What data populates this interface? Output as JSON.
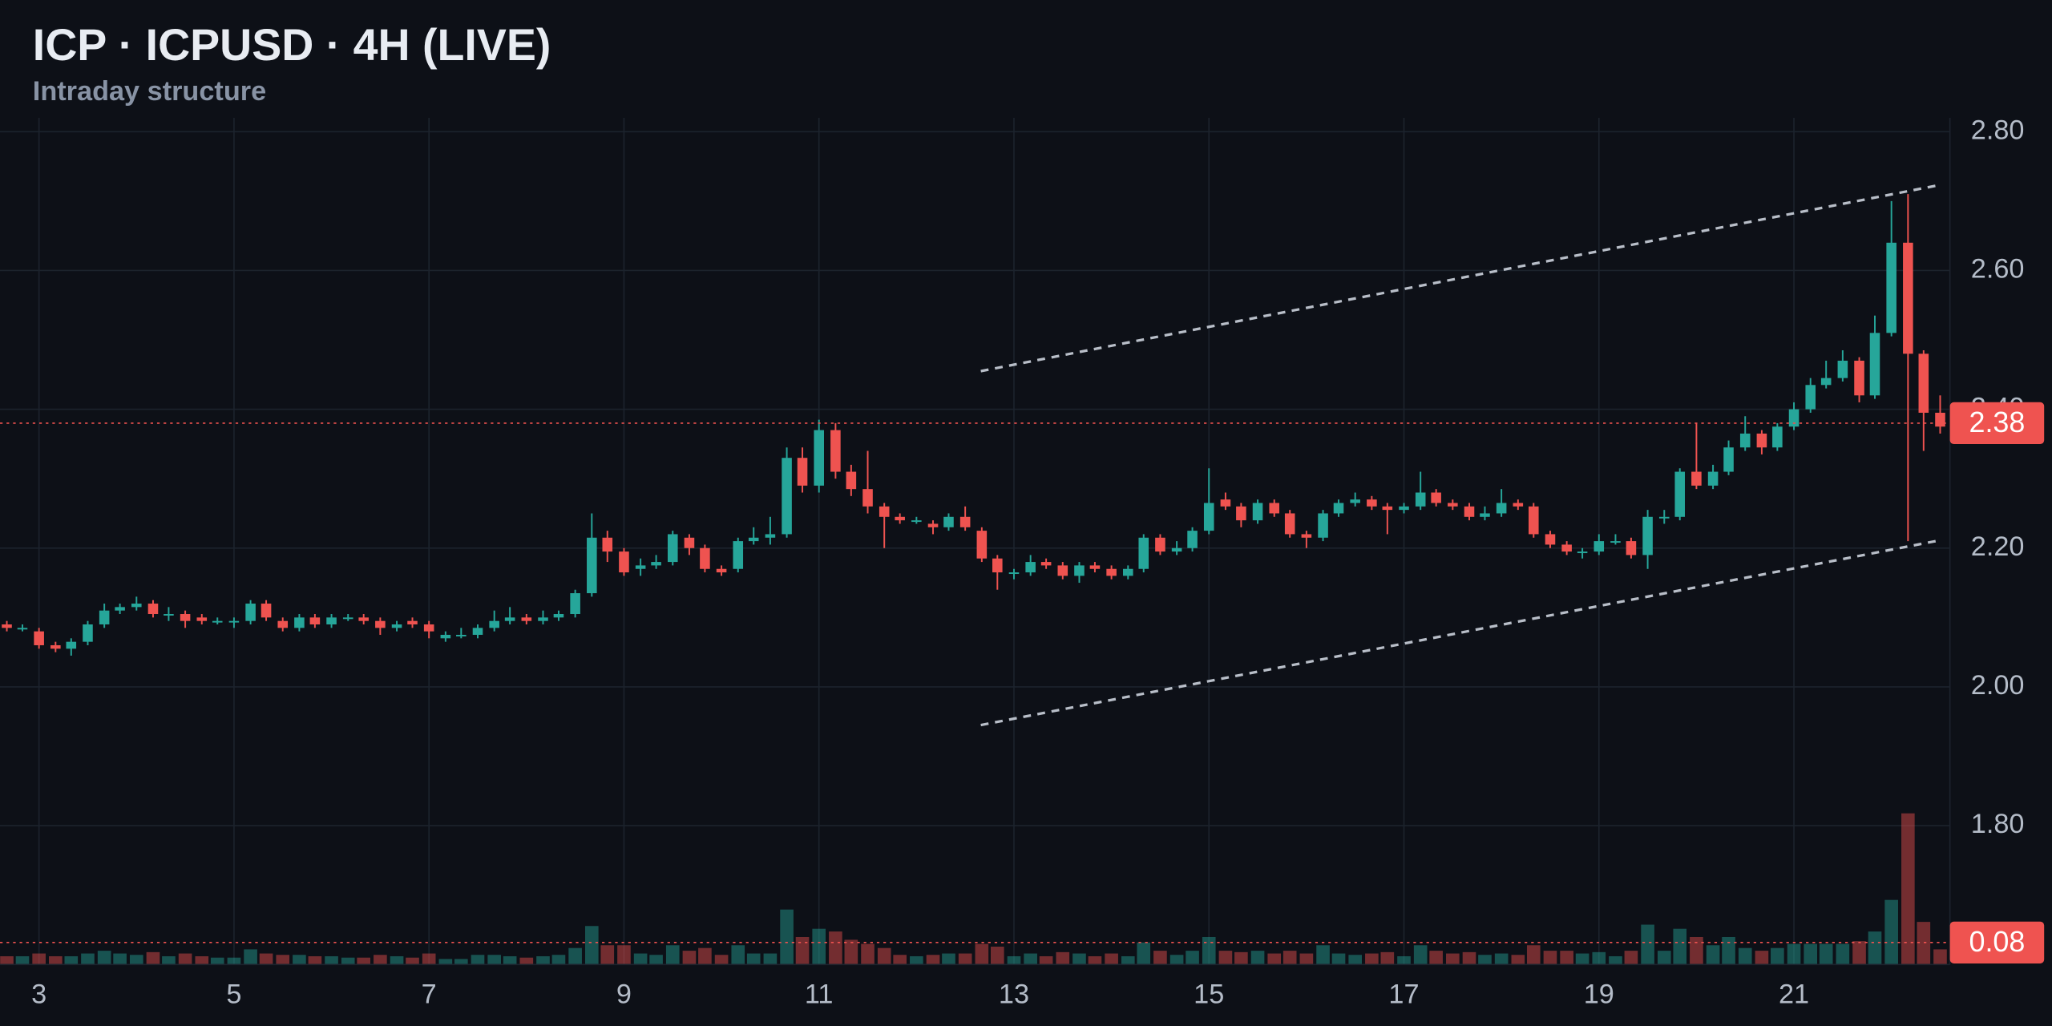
{
  "chart_data": {
    "type": "candlestick",
    "title": "ICP · ICPUSD · 4H (LIVE)",
    "subtitle": "Intraday structure",
    "up_color": "#26a69a",
    "down_color": "#ef5350",
    "x": [
      2.67,
      2.83,
      3,
      3.17,
      3.33,
      3.5,
      3.67,
      3.83,
      4,
      4.17,
      4.33,
      4.5,
      4.67,
      4.83,
      5,
      5.17,
      5.33,
      5.5,
      5.67,
      5.83,
      6,
      6.17,
      6.33,
      6.5,
      6.67,
      6.83,
      7,
      7.17,
      7.33,
      7.5,
      7.67,
      7.83,
      8,
      8.17,
      8.33,
      8.5,
      8.67,
      8.83,
      9,
      9.17,
      9.33,
      9.5,
      9.67,
      9.83,
      10,
      10.17,
      10.33,
      10.5,
      10.67,
      10.83,
      11,
      11.17,
      11.33,
      11.5,
      11.67,
      11.83,
      12,
      12.17,
      12.33,
      12.5,
      12.67,
      12.83,
      13,
      13.17,
      13.33,
      13.5,
      13.67,
      13.83,
      14,
      14.17,
      14.33,
      14.5,
      14.67,
      14.83,
      15,
      15.17,
      15.33,
      15.5,
      15.67,
      15.83,
      16,
      16.17,
      16.33,
      16.5,
      16.67,
      16.83,
      17,
      17.17,
      17.33,
      17.5,
      17.67,
      17.83,
      18,
      18.17,
      18.33,
      18.5,
      18.67,
      18.83,
      19,
      19.17,
      19.33,
      19.5,
      19.67,
      19.83,
      20,
      20.17,
      20.33,
      20.5,
      20.67,
      20.83,
      21,
      21.17,
      21.33,
      21.5,
      21.67,
      21.83,
      22,
      22.17,
      22.33,
      22.5
    ],
    "open": [
      2.09,
      2.085,
      2.08,
      2.06,
      2.055,
      2.065,
      2.09,
      2.11,
      2.115,
      2.12,
      2.105,
      2.105,
      2.1,
      2.095,
      2.095,
      2.095,
      2.12,
      2.095,
      2.085,
      2.1,
      2.09,
      2.1,
      2.1,
      2.095,
      2.085,
      2.095,
      2.09,
      2.07,
      2.075,
      2.075,
      2.085,
      2.095,
      2.1,
      2.095,
      2.1,
      2.105,
      2.135,
      2.215,
      2.195,
      2.17,
      2.175,
      2.18,
      2.215,
      2.2,
      2.17,
      2.17,
      2.21,
      2.215,
      2.22,
      2.33,
      2.29,
      2.37,
      2.31,
      2.285,
      2.26,
      2.245,
      2.24,
      2.235,
      2.23,
      2.245,
      2.225,
      2.185,
      2.165,
      2.165,
      2.18,
      2.175,
      2.16,
      2.175,
      2.17,
      2.16,
      2.17,
      2.215,
      2.195,
      2.2,
      2.225,
      2.27,
      2.26,
      2.24,
      2.265,
      2.25,
      2.22,
      2.215,
      2.25,
      2.265,
      2.27,
      2.26,
      2.255,
      2.26,
      2.28,
      2.265,
      2.26,
      2.245,
      2.25,
      2.265,
      2.26,
      2.22,
      2.205,
      2.195,
      2.195,
      2.21,
      2.21,
      2.19,
      2.245,
      2.245,
      2.31,
      2.29,
      2.31,
      2.345,
      2.365,
      2.345,
      2.375,
      2.4,
      2.435,
      2.445,
      2.47,
      2.42,
      2.51,
      2.64,
      2.48,
      2.395
    ],
    "high": [
      2.095,
      2.09,
      2.085,
      2.065,
      2.07,
      2.095,
      2.12,
      2.12,
      2.13,
      2.125,
      2.115,
      2.11,
      2.105,
      2.1,
      2.1,
      2.125,
      2.125,
      2.1,
      2.105,
      2.105,
      2.105,
      2.105,
      2.105,
      2.1,
      2.095,
      2.1,
      2.095,
      2.08,
      2.085,
      2.09,
      2.11,
      2.115,
      2.105,
      2.11,
      2.11,
      2.14,
      2.25,
      2.225,
      2.2,
      2.185,
      2.19,
      2.225,
      2.22,
      2.205,
      2.175,
      2.215,
      2.23,
      2.245,
      2.345,
      2.345,
      2.385,
      2.38,
      2.32,
      2.34,
      2.265,
      2.25,
      2.245,
      2.24,
      2.25,
      2.26,
      2.23,
      2.19,
      2.17,
      2.19,
      2.185,
      2.18,
      2.18,
      2.18,
      2.175,
      2.175,
      2.22,
      2.22,
      2.21,
      2.23,
      2.315,
      2.28,
      2.265,
      2.27,
      2.27,
      2.255,
      2.225,
      2.255,
      2.27,
      2.28,
      2.275,
      2.265,
      2.265,
      2.31,
      2.285,
      2.27,
      2.265,
      2.26,
      2.285,
      2.27,
      2.265,
      2.225,
      2.21,
      2.2,
      2.22,
      2.22,
      2.215,
      2.255,
      2.255,
      2.315,
      2.38,
      2.32,
      2.355,
      2.39,
      2.37,
      2.38,
      2.41,
      2.445,
      2.47,
      2.485,
      2.475,
      2.535,
      2.7,
      2.71,
      2.485,
      2.42
    ],
    "low": [
      2.08,
      2.08,
      2.055,
      2.05,
      2.045,
      2.06,
      2.085,
      2.105,
      2.11,
      2.1,
      2.095,
      2.085,
      2.09,
      2.09,
      2.085,
      2.09,
      2.095,
      2.08,
      2.08,
      2.085,
      2.085,
      2.095,
      2.09,
      2.075,
      2.08,
      2.085,
      2.07,
      2.065,
      2.07,
      2.07,
      2.08,
      2.09,
      2.09,
      2.09,
      2.095,
      2.1,
      2.13,
      2.18,
      2.16,
      2.16,
      2.17,
      2.175,
      2.19,
      2.165,
      2.16,
      2.165,
      2.205,
      2.205,
      2.215,
      2.28,
      2.28,
      2.3,
      2.275,
      2.25,
      2.2,
      2.235,
      2.235,
      2.22,
      2.225,
      2.225,
      2.18,
      2.14,
      2.155,
      2.16,
      2.17,
      2.155,
      2.15,
      2.165,
      2.155,
      2.155,
      2.165,
      2.19,
      2.19,
      2.195,
      2.22,
      2.255,
      2.23,
      2.235,
      2.245,
      2.215,
      2.2,
      2.21,
      2.245,
      2.26,
      2.255,
      2.22,
      2.25,
      2.255,
      2.26,
      2.255,
      2.24,
      2.24,
      2.245,
      2.255,
      2.215,
      2.2,
      2.19,
      2.185,
      2.19,
      2.205,
      2.185,
      2.17,
      2.235,
      2.24,
      2.285,
      2.285,
      2.305,
      2.34,
      2.335,
      2.34,
      2.37,
      2.395,
      2.43,
      2.44,
      2.41,
      2.415,
      2.505,
      2.21,
      2.34,
      2.365
    ],
    "close": [
      2.085,
      2.085,
      2.06,
      2.055,
      2.065,
      2.09,
      2.11,
      2.115,
      2.12,
      2.105,
      2.105,
      2.095,
      2.095,
      2.095,
      2.095,
      2.12,
      2.1,
      2.085,
      2.1,
      2.09,
      2.1,
      2.1,
      2.095,
      2.085,
      2.09,
      2.09,
      2.08,
      2.075,
      2.075,
      2.085,
      2.095,
      2.1,
      2.095,
      2.1,
      2.105,
      2.135,
      2.215,
      2.195,
      2.165,
      2.175,
      2.18,
      2.22,
      2.2,
      2.17,
      2.165,
      2.21,
      2.215,
      2.22,
      2.33,
      2.29,
      2.37,
      2.31,
      2.285,
      2.26,
      2.245,
      2.24,
      2.24,
      2.23,
      2.245,
      2.23,
      2.185,
      2.165,
      2.165,
      2.18,
      2.175,
      2.16,
      2.175,
      2.17,
      2.16,
      2.17,
      2.215,
      2.195,
      2.2,
      2.225,
      2.265,
      2.26,
      2.24,
      2.265,
      2.25,
      2.22,
      2.215,
      2.25,
      2.265,
      2.27,
      2.26,
      2.255,
      2.26,
      2.28,
      2.265,
      2.26,
      2.245,
      2.25,
      2.265,
      2.26,
      2.22,
      2.205,
      2.195,
      2.195,
      2.21,
      2.21,
      2.19,
      2.245,
      2.245,
      2.31,
      2.29,
      2.31,
      2.345,
      2.365,
      2.345,
      2.375,
      2.4,
      2.435,
      2.445,
      2.47,
      2.42,
      2.51,
      2.64,
      2.48,
      2.395,
      2.375
    ],
    "volume": [
      0.03,
      0.03,
      0.04,
      0.03,
      0.03,
      0.04,
      0.05,
      0.04,
      0.035,
      0.045,
      0.03,
      0.04,
      0.03,
      0.025,
      0.025,
      0.055,
      0.04,
      0.035,
      0.035,
      0.03,
      0.03,
      0.025,
      0.025,
      0.035,
      0.03,
      0.025,
      0.04,
      0.02,
      0.02,
      0.035,
      0.035,
      0.03,
      0.025,
      0.03,
      0.035,
      0.06,
      0.14,
      0.07,
      0.07,
      0.04,
      0.035,
      0.07,
      0.05,
      0.06,
      0.035,
      0.07,
      0.04,
      0.04,
      0.2,
      0.1,
      0.13,
      0.12,
      0.09,
      0.075,
      0.06,
      0.035,
      0.03,
      0.035,
      0.04,
      0.04,
      0.075,
      0.065,
      0.03,
      0.04,
      0.03,
      0.045,
      0.04,
      0.03,
      0.04,
      0.03,
      0.08,
      0.05,
      0.035,
      0.05,
      0.1,
      0.05,
      0.045,
      0.05,
      0.04,
      0.05,
      0.04,
      0.07,
      0.04,
      0.035,
      0.04,
      0.045,
      0.03,
      0.07,
      0.05,
      0.04,
      0.045,
      0.035,
      0.04,
      0.035,
      0.07,
      0.05,
      0.05,
      0.04,
      0.045,
      0.03,
      0.05,
      0.145,
      0.05,
      0.13,
      0.1,
      0.07,
      0.1,
      0.06,
      0.05,
      0.06,
      0.075,
      0.075,
      0.075,
      0.075,
      0.085,
      0.12,
      0.235,
      0.55,
      0.155,
      0.055
    ],
    "xlim": [
      2.6,
      22.6
    ],
    "xticks": [
      3,
      5,
      7,
      9,
      11,
      13,
      15,
      17,
      19,
      21
    ],
    "ylim": [
      1.6,
      2.82
    ],
    "yticks": [
      {
        "value": 1.8,
        "label": "1.80"
      },
      {
        "value": 2.0,
        "label": "2.00"
      },
      {
        "value": 2.2,
        "label": "2.20"
      },
      {
        "value": 2.4,
        "label": "2.40"
      },
      {
        "value": 2.6,
        "label": "2.60"
      },
      {
        "value": 2.8,
        "label": "2.80"
      }
    ],
    "volume_lim": [
      0,
      0.6
    ],
    "grid": true,
    "last_price": 2.38,
    "last_volume": 0.08,
    "trendlines": [
      {
        "x": [
          12.66,
          22.49
        ],
        "y": [
          2.455,
          2.723
        ]
      },
      {
        "x": [
          12.66,
          22.49
        ],
        "y": [
          1.945,
          2.211
        ]
      }
    ]
  }
}
